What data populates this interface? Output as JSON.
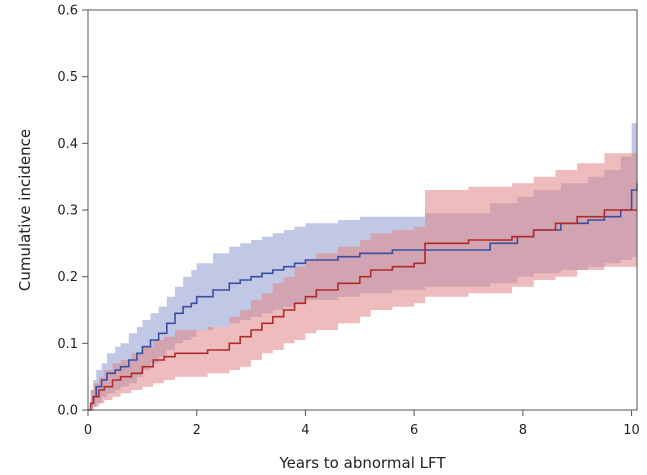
{
  "chart_data": {
    "type": "line",
    "title": "",
    "xlabel": "Years to abnormal LFT",
    "ylabel": "Cumulative incidence",
    "xlim": [
      0,
      10.1
    ],
    "ylim": [
      0,
      0.6
    ],
    "x_ticks": [
      0,
      2,
      4,
      6,
      8,
      10
    ],
    "y_ticks": [
      0.0,
      0.1,
      0.2,
      0.3,
      0.4,
      0.5,
      0.6
    ],
    "x_tick_labels": [
      "0",
      "2",
      "4",
      "6",
      "8",
      "10"
    ],
    "y_tick_labels": [
      "0.0",
      "0.1",
      "0.2",
      "0.3",
      "0.4",
      "0.5",
      "0.6"
    ],
    "grid": false,
    "legend": "none",
    "series": [
      {
        "color": "#3a4fa0",
        "band_color": "#8c9ad0",
        "step": true,
        "x": [
          0,
          0.05,
          0.1,
          0.15,
          0.25,
          0.35,
          0.5,
          0.6,
          0.75,
          0.9,
          1.0,
          1.15,
          1.3,
          1.45,
          1.6,
          1.75,
          1.9,
          2.0,
          2.3,
          2.6,
          2.8,
          3.0,
          3.2,
          3.4,
          3.6,
          3.8,
          4.0,
          4.6,
          5.0,
          5.6,
          6.2,
          7.4,
          7.9,
          8.2,
          8.7,
          9.2,
          9.5,
          9.8,
          10.0,
          10.1
        ],
        "y": [
          0,
          0.01,
          0.02,
          0.035,
          0.045,
          0.055,
          0.06,
          0.065,
          0.075,
          0.085,
          0.095,
          0.105,
          0.115,
          0.13,
          0.145,
          0.155,
          0.16,
          0.17,
          0.18,
          0.19,
          0.195,
          0.2,
          0.205,
          0.21,
          0.215,
          0.22,
          0.225,
          0.23,
          0.235,
          0.24,
          0.24,
          0.25,
          0.26,
          0.27,
          0.28,
          0.285,
          0.29,
          0.3,
          0.33,
          0.34
        ],
        "lower": [
          0,
          0,
          0.005,
          0.01,
          0.02,
          0.025,
          0.03,
          0.035,
          0.04,
          0.05,
          0.06,
          0.07,
          0.08,
          0.09,
          0.1,
          0.105,
          0.11,
          0.12,
          0.125,
          0.13,
          0.135,
          0.14,
          0.145,
          0.15,
          0.155,
          0.16,
          0.165,
          0.17,
          0.175,
          0.18,
          0.185,
          0.19,
          0.2,
          0.205,
          0.21,
          0.215,
          0.22,
          0.225,
          0.23,
          0.23
        ],
        "upper": [
          0,
          0.03,
          0.045,
          0.06,
          0.07,
          0.085,
          0.095,
          0.1,
          0.115,
          0.125,
          0.135,
          0.145,
          0.155,
          0.17,
          0.185,
          0.2,
          0.21,
          0.22,
          0.235,
          0.245,
          0.25,
          0.255,
          0.26,
          0.265,
          0.27,
          0.275,
          0.28,
          0.285,
          0.29,
          0.29,
          0.295,
          0.31,
          0.32,
          0.33,
          0.34,
          0.35,
          0.36,
          0.38,
          0.43,
          0.44
        ]
      },
      {
        "color": "#b02a2a",
        "band_color": "#e08585",
        "step": true,
        "x": [
          0,
          0.05,
          0.1,
          0.2,
          0.3,
          0.45,
          0.6,
          0.8,
          1.0,
          1.2,
          1.4,
          1.6,
          2.2,
          2.6,
          2.8,
          3.0,
          3.2,
          3.4,
          3.6,
          3.8,
          4.0,
          4.2,
          4.6,
          5.0,
          5.2,
          5.6,
          6.0,
          6.2,
          7.0,
          7.8,
          8.2,
          8.6,
          9.0,
          9.5,
          10.1
        ],
        "y": [
          0,
          0.01,
          0.02,
          0.03,
          0.035,
          0.045,
          0.05,
          0.055,
          0.065,
          0.075,
          0.08,
          0.085,
          0.09,
          0.1,
          0.11,
          0.12,
          0.13,
          0.14,
          0.15,
          0.16,
          0.17,
          0.18,
          0.19,
          0.2,
          0.21,
          0.215,
          0.22,
          0.25,
          0.255,
          0.26,
          0.27,
          0.28,
          0.29,
          0.3,
          0.3
        ],
        "lower": [
          0,
          0,
          0.005,
          0.01,
          0.015,
          0.02,
          0.025,
          0.03,
          0.035,
          0.04,
          0.045,
          0.05,
          0.055,
          0.06,
          0.065,
          0.075,
          0.085,
          0.09,
          0.1,
          0.105,
          0.115,
          0.12,
          0.13,
          0.14,
          0.15,
          0.155,
          0.16,
          0.17,
          0.175,
          0.185,
          0.195,
          0.2,
          0.21,
          0.215,
          0.22
        ],
        "upper": [
          0,
          0.03,
          0.04,
          0.05,
          0.06,
          0.07,
          0.075,
          0.085,
          0.095,
          0.105,
          0.11,
          0.12,
          0.125,
          0.14,
          0.15,
          0.165,
          0.175,
          0.19,
          0.2,
          0.215,
          0.225,
          0.235,
          0.245,
          0.255,
          0.265,
          0.27,
          0.275,
          0.33,
          0.335,
          0.34,
          0.35,
          0.36,
          0.37,
          0.385,
          0.385
        ]
      }
    ]
  }
}
